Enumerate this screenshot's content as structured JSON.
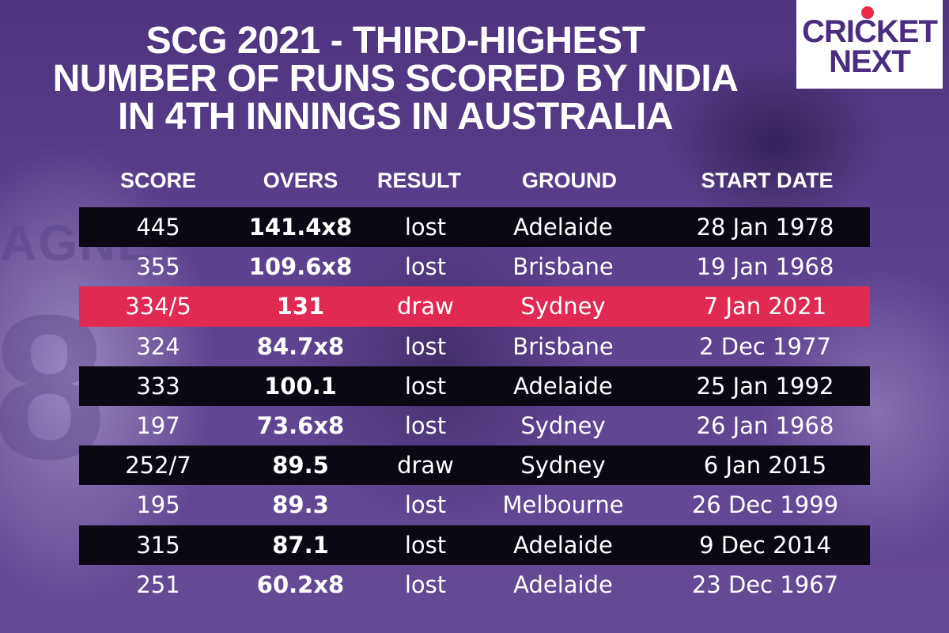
{
  "title": {
    "lines": [
      "SCG 2021 - THIRD-HIGHEST",
      "NUMBER OF RUNS SCORED BY INDIA",
      "IN 4TH INNINGS IN AUSTRALIA"
    ]
  },
  "logo": {
    "line1": "CRICKET",
    "line2": "NEXT"
  },
  "background_text": {
    "jersey_name": "AGNE",
    "jersey_number": "8"
  },
  "columns": [
    "SCORE",
    "OVERS",
    "RESULT",
    "GROUND",
    "START DATE"
  ],
  "colors": {
    "highlight": "#e02a52",
    "dark_row": "#0b0814",
    "background": "#5a3f8c",
    "logo_text": "#4a2d80"
  },
  "rows": [
    {
      "score": "445",
      "overs": "141.4x8",
      "result": "lost",
      "ground": "Adelaide",
      "date": "28 Jan 1978",
      "style": "dark"
    },
    {
      "score": "355",
      "overs": "109.6x8",
      "result": "lost",
      "ground": "Brisbane",
      "date": "19 Jan 1968",
      "style": "plain"
    },
    {
      "score": "334/5",
      "overs": "131",
      "result": "draw",
      "ground": "Sydney",
      "date": "7 Jan 2021",
      "style": "highlight"
    },
    {
      "score": "324",
      "overs": "84.7x8",
      "result": "lost",
      "ground": "Brisbane",
      "date": "2 Dec 1977",
      "style": "plain"
    },
    {
      "score": "333",
      "overs": "100.1",
      "result": "lost",
      "ground": "Adelaide",
      "date": "25 Jan 1992",
      "style": "dark"
    },
    {
      "score": "197",
      "overs": "73.6x8",
      "result": "lost",
      "ground": "Sydney",
      "date": "26 Jan 1968",
      "style": "plain"
    },
    {
      "score": "252/7",
      "overs": "89.5",
      "result": "draw",
      "ground": "Sydney",
      "date": "6 Jan 2015",
      "style": "dark"
    },
    {
      "score": "195",
      "overs": "89.3",
      "result": "lost",
      "ground": "Melbourne",
      "date": "26 Dec 1999",
      "style": "plain"
    },
    {
      "score": "315",
      "overs": "87.1",
      "result": "lost",
      "ground": "Adelaide",
      "date": "9 Dec 2014",
      "style": "dark"
    },
    {
      "score": "251",
      "overs": "60.2x8",
      "result": "lost",
      "ground": "Adelaide",
      "date": "23 Dec 1967",
      "style": "plain"
    }
  ]
}
